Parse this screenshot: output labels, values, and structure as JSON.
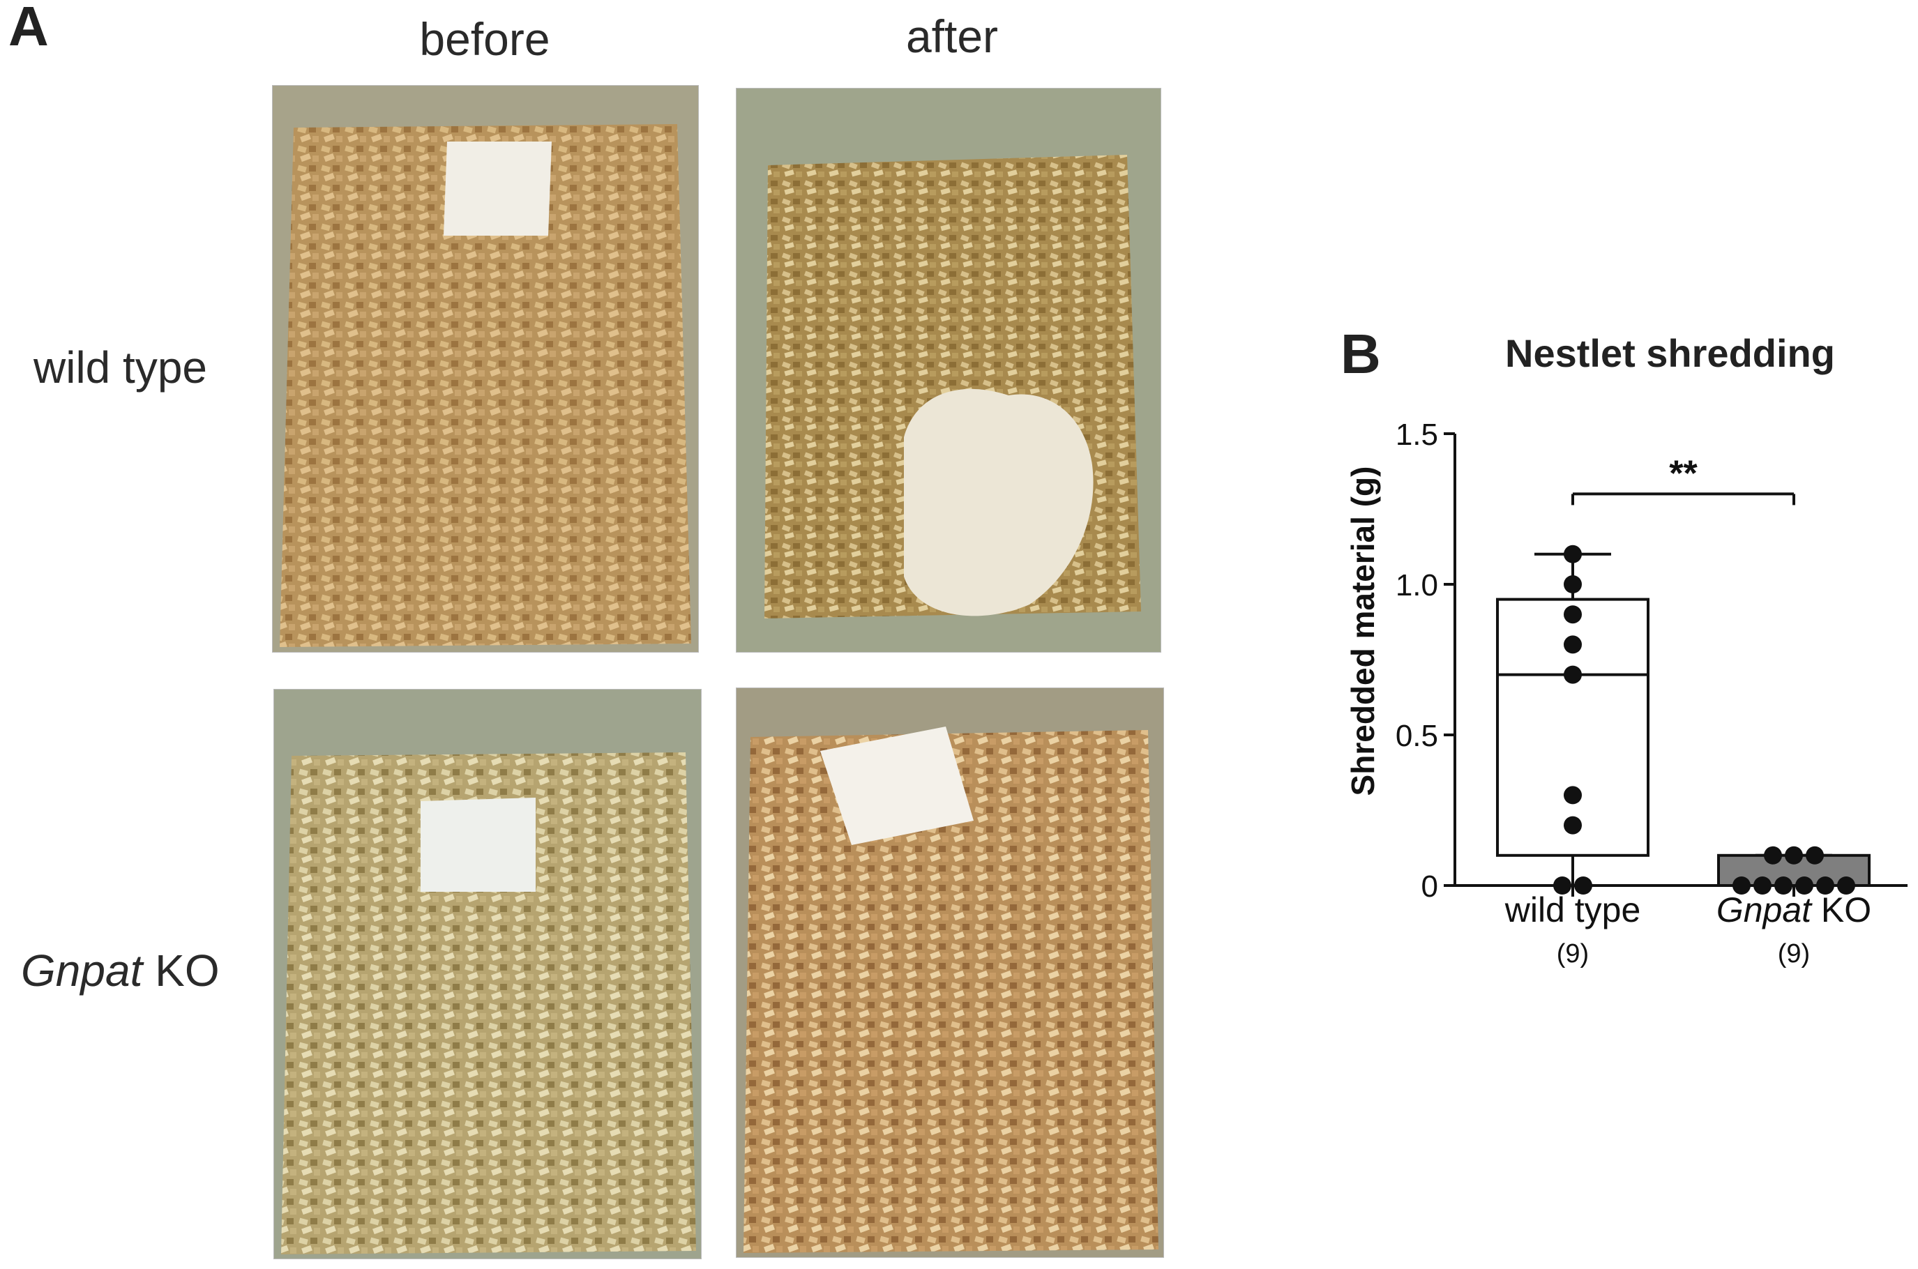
{
  "panel_a": {
    "letter": "A",
    "columns": [
      "before",
      "after"
    ],
    "rows": [
      {
        "label": "wild type",
        "italic_part": ""
      },
      {
        "label": " KO",
        "italic_part": "Gnpat"
      }
    ],
    "photo_colors": {
      "chips": "#c9a46e",
      "chips_dark": "#9a733d",
      "chips_light": "#e4c896",
      "tray": "#b9b59a",
      "nestlet": "#f3f1ea"
    }
  },
  "panel_b": {
    "letter": "B",
    "title": "Nestlet shredding",
    "ylabel": "Shredded material (g)",
    "significance": "**",
    "groups": [
      {
        "name": "wild type",
        "italic": false,
        "n_label": "(9)"
      },
      {
        "name_italic": "Gnpat",
        "name_rest": " KO",
        "italic": true,
        "n_label": "(9)"
      }
    ]
  },
  "chart_data": {
    "type": "box",
    "title": "Nestlet shredding",
    "xlabel": "",
    "ylabel": "Shredded material (g)",
    "ylim": [
      0,
      1.5
    ],
    "yticks": [
      0,
      0.5,
      1.0,
      1.5
    ],
    "ytick_labels": [
      "0",
      "0.5",
      "1.0",
      "1.5"
    ],
    "categories": [
      "wild type",
      "Gnpat KO"
    ],
    "box_colors": [
      "#ffffff",
      "#7f7f7f"
    ],
    "boxes": [
      {
        "min": 0,
        "q1": 0.1,
        "median": 0.7,
        "q3": 0.95,
        "max": 1.1
      },
      {
        "min": 0,
        "q1": 0,
        "median": 0,
        "q3": 0.1,
        "max": 0.1
      }
    ],
    "points": [
      [
        1.1,
        1.0,
        0.9,
        0.8,
        0.7,
        0.3,
        0.2,
        0,
        0
      ],
      [
        0.1,
        0.1,
        0.1,
        0,
        0,
        0,
        0,
        0,
        0
      ]
    ],
    "significance": "**"
  }
}
